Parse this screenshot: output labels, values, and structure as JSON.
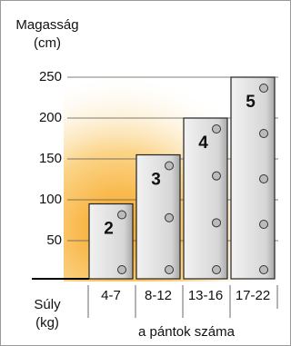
{
  "chart_data": {
    "type": "bar",
    "y_label": [
      "Magasság",
      "(cm)"
    ],
    "x_label": [
      "Súly",
      "(kg)"
    ],
    "annotation": "a pántok száma",
    "categories": [
      "4-7",
      "8-12",
      "13-16",
      "17-22"
    ],
    "values": [
      95,
      155,
      200,
      250
    ],
    "straps": [
      2,
      3,
      4,
      5
    ],
    "color": "#d8d8d8",
    "ylim": [
      0,
      250
    ],
    "yticks": [
      50,
      100,
      150,
      200,
      250
    ],
    "grid": true
  }
}
